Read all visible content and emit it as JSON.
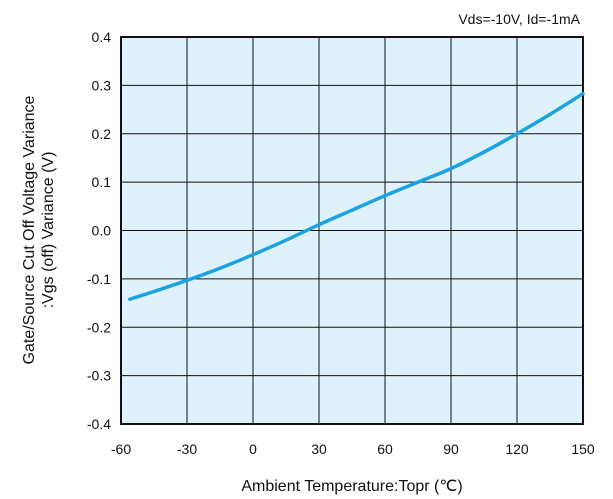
{
  "chart_data": {
    "type": "line",
    "annotation": "Vds=-10V, Id=-1mA",
    "xlabel": "Ambient Temperature:Topr (℃)",
    "ylabel_line1": "Gate/Source Cut Off Voltage Variance",
    "ylabel_line2": ":Vgs (off) Variance (V)",
    "xlim": [
      -60,
      150
    ],
    "ylim": [
      -0.4,
      0.4
    ],
    "x_ticks": [
      "-60",
      "-30",
      "0",
      "30",
      "60",
      "90",
      "120",
      "150"
    ],
    "y_ticks": [
      "0.4",
      "0.3",
      "0.2",
      "0.1",
      "0.0",
      "-0.1",
      "-0.2",
      "-0.3",
      "-0.4"
    ],
    "grid": true,
    "colors": {
      "plot_background": "#dff1fa",
      "line": "#1aa3e0",
      "grid": "#111111"
    },
    "series": [
      {
        "x": [
          -56,
          -45,
          -30,
          -15,
          0,
          15,
          30,
          45,
          60,
          75,
          90,
          105,
          120,
          135,
          150
        ],
        "y": [
          -0.142,
          -0.126,
          -0.103,
          -0.078,
          -0.05,
          -0.02,
          0.012,
          0.042,
          0.072,
          0.1,
          0.128,
          0.162,
          0.2,
          0.24,
          0.283
        ]
      }
    ]
  }
}
